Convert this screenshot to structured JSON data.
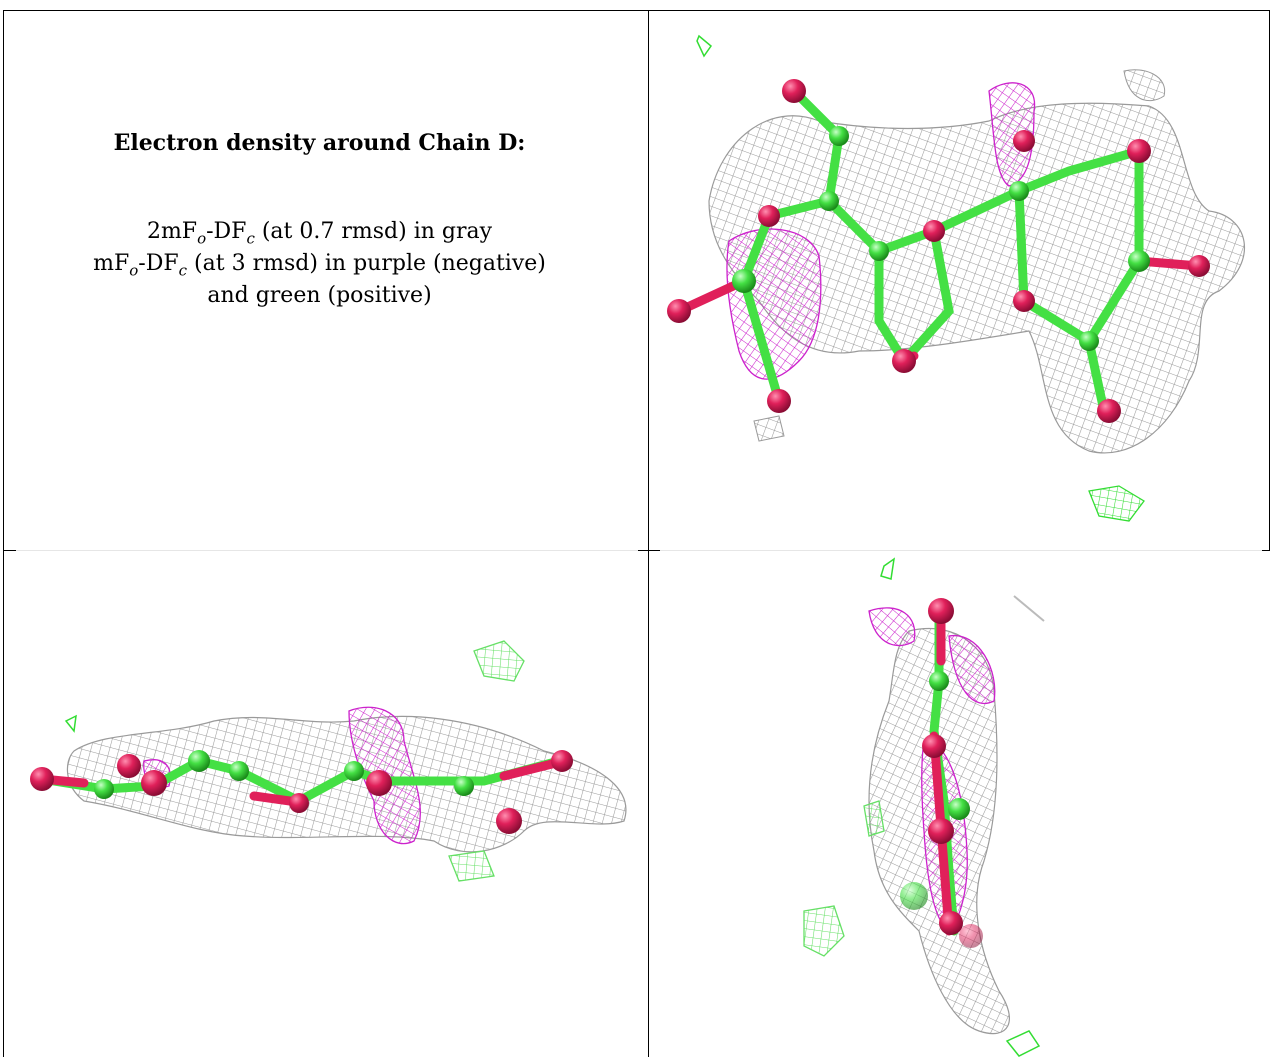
{
  "caption": {
    "title": "Electron density around Chain D:",
    "line1": {
      "prefix": "2mF",
      "s1": "o",
      "mid": "-DF",
      "s2": "c",
      "suffix": " (at 0.7 rmsd) in gray"
    },
    "line2": {
      "prefix": "mF",
      "s1": "o",
      "mid": "-DF",
      "s2": "c",
      "suffix": " (at 3 rmsd) in purple (negative)"
    },
    "line3": "and green (positive)"
  },
  "colors": {
    "mesh_2fofc": "#9a9a9a",
    "mesh_negative": "#cc22cc",
    "mesh_positive": "#33dd33",
    "carbon": "#44e044",
    "oxygen": "#e0205a"
  },
  "panels": [
    {
      "view": "top-view"
    },
    {
      "view": "side-view"
    },
    {
      "view": "end-view"
    }
  ]
}
